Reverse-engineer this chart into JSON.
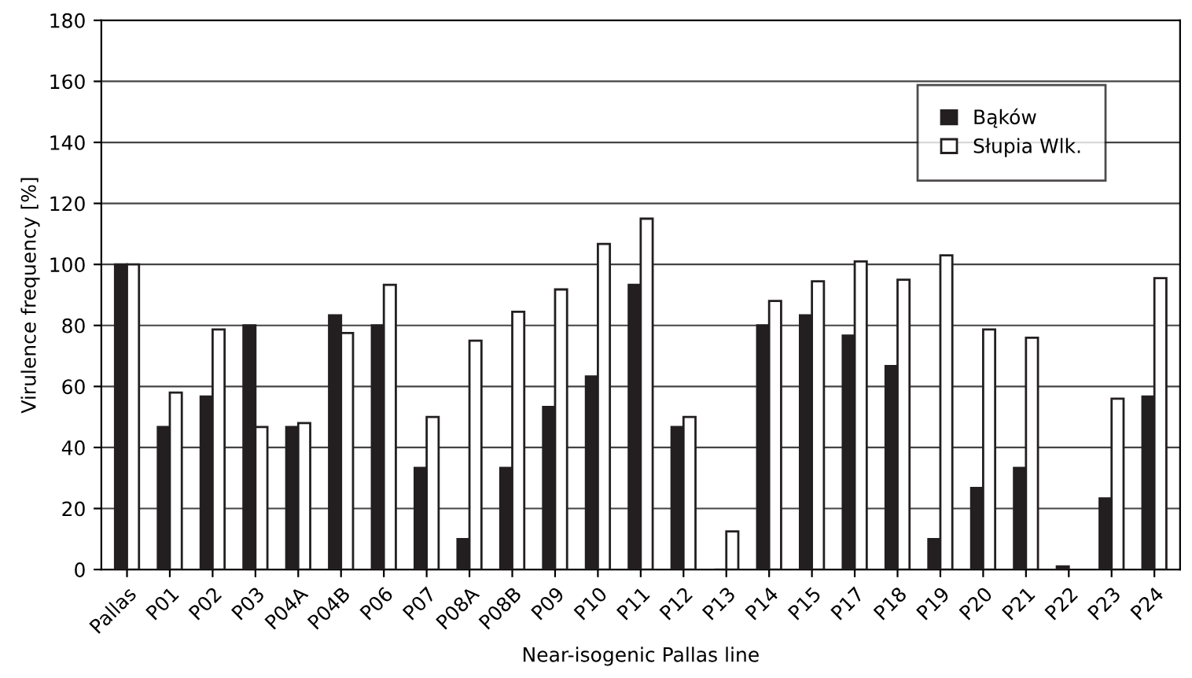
{
  "chart_data": {
    "type": "bar",
    "xlabel": "Near-isogenic Pallas line",
    "ylabel": "Virulence frequency [%]",
    "categories": [
      "Pallas",
      "P01",
      "P02",
      "P03",
      "P04A",
      "P04B",
      "P06",
      "P07",
      "P08A",
      "P08B",
      "P09",
      "P10",
      "P11",
      "P12",
      "P13",
      "P14",
      "P15",
      "P17",
      "P18",
      "P19",
      "P20",
      "P21",
      "P22",
      "P23",
      "P24"
    ],
    "series": [
      {
        "name": "Bąków",
        "color": "#231f20",
        "values": [
          100,
          46.7,
          56.7,
          80,
          46.7,
          83.3,
          80,
          33.3,
          10,
          33.3,
          53.3,
          63.3,
          93.3,
          46.7,
          0,
          80,
          83.3,
          76.7,
          66.7,
          10,
          26.7,
          33.3,
          1,
          23.3,
          56.7
        ]
      },
      {
        "name": "Słupia Wlk.",
        "color": "#ffffff",
        "values": [
          100,
          58,
          78.7,
          46.7,
          48,
          77.5,
          93.3,
          50,
          75,
          84.5,
          91.8,
          106.7,
          115,
          50,
          12.5,
          88,
          94.5,
          101,
          95,
          103,
          78.7,
          76,
          null,
          56,
          95.5
        ]
      }
    ],
    "ylim": [
      0,
      180
    ],
    "yticks": [
      0,
      20,
      40,
      60,
      80,
      100,
      120,
      140,
      160,
      180
    ],
    "grid": "y",
    "legend": "top right"
  }
}
